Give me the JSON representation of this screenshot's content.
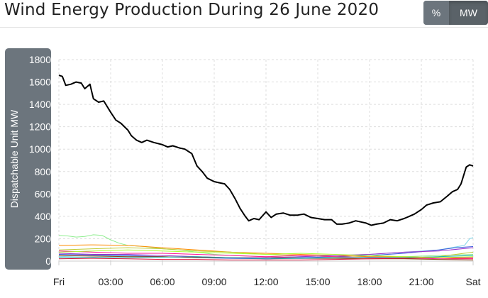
{
  "title": "Wind Energy Production During 26 June 2020",
  "unit_toggle": {
    "options": [
      "%",
      "MW"
    ],
    "selected": "MW"
  },
  "colors": {
    "main_series": "#000000",
    "axis_band": "#6c757d",
    "grid": "#dddddd"
  },
  "chart_data": {
    "type": "line",
    "title": "Wind Energy Production During 26 June 2020",
    "xlabel": "",
    "ylabel": "Dispatchable Unit MW",
    "ylim": [
      0,
      1800
    ],
    "xlim": [
      0,
      24
    ],
    "yticks": [
      0,
      200,
      400,
      600,
      800,
      1000,
      1200,
      1400,
      1600,
      1800
    ],
    "xticks": [
      {
        "x": 0,
        "label": "Fri"
      },
      {
        "x": 3,
        "label": "03:00"
      },
      {
        "x": 6,
        "label": "06:00"
      },
      {
        "x": 9,
        "label": "09:00"
      },
      {
        "x": 12,
        "label": "12:00"
      },
      {
        "x": 15,
        "label": "15:00"
      },
      {
        "x": 18,
        "label": "18:00"
      },
      {
        "x": 21,
        "label": "21:00"
      },
      {
        "x": 24,
        "label": "Sat"
      }
    ],
    "grid": true,
    "legend": "none",
    "series": [
      {
        "color": "#000000",
        "width": 2,
        "points": [
          [
            0,
            1660
          ],
          [
            0.2,
            1650
          ],
          [
            0.4,
            1570
          ],
          [
            0.7,
            1580
          ],
          [
            1.0,
            1600
          ],
          [
            1.3,
            1590
          ],
          [
            1.5,
            1540
          ],
          [
            1.8,
            1580
          ],
          [
            2.0,
            1450
          ],
          [
            2.3,
            1420
          ],
          [
            2.6,
            1430
          ],
          [
            3.0,
            1330
          ],
          [
            3.3,
            1260
          ],
          [
            3.6,
            1230
          ],
          [
            4.0,
            1170
          ],
          [
            4.2,
            1120
          ],
          [
            4.5,
            1080
          ],
          [
            4.8,
            1060
          ],
          [
            5.1,
            1080
          ],
          [
            5.5,
            1060
          ],
          [
            6.0,
            1040
          ],
          [
            6.3,
            1020
          ],
          [
            6.6,
            1030
          ],
          [
            7.0,
            1010
          ],
          [
            7.3,
            1000
          ],
          [
            7.7,
            960
          ],
          [
            8.0,
            850
          ],
          [
            8.3,
            800
          ],
          [
            8.6,
            740
          ],
          [
            9.0,
            710
          ],
          [
            9.3,
            700
          ],
          [
            9.6,
            690
          ],
          [
            9.9,
            640
          ],
          [
            10.2,
            560
          ],
          [
            10.5,
            470
          ],
          [
            10.8,
            400
          ],
          [
            11.0,
            360
          ],
          [
            11.3,
            380
          ],
          [
            11.6,
            370
          ],
          [
            12.0,
            440
          ],
          [
            12.3,
            390
          ],
          [
            12.6,
            420
          ],
          [
            13.0,
            430
          ],
          [
            13.4,
            410
          ],
          [
            13.8,
            410
          ],
          [
            14.2,
            420
          ],
          [
            14.6,
            390
          ],
          [
            15.0,
            380
          ],
          [
            15.4,
            370
          ],
          [
            15.8,
            370
          ],
          [
            16.1,
            330
          ],
          [
            16.4,
            330
          ],
          [
            16.8,
            340
          ],
          [
            17.2,
            360
          ],
          [
            17.5,
            350
          ],
          [
            17.8,
            340
          ],
          [
            18.1,
            320
          ],
          [
            18.4,
            330
          ],
          [
            18.8,
            340
          ],
          [
            19.2,
            370
          ],
          [
            19.6,
            360
          ],
          [
            20.0,
            380
          ],
          [
            20.3,
            400
          ],
          [
            20.6,
            420
          ],
          [
            21.0,
            460
          ],
          [
            21.3,
            500
          ],
          [
            21.7,
            520
          ],
          [
            22.1,
            530
          ],
          [
            22.5,
            580
          ],
          [
            22.8,
            620
          ],
          [
            23.1,
            640
          ],
          [
            23.3,
            690
          ],
          [
            23.6,
            840
          ],
          [
            23.8,
            860
          ],
          [
            24.0,
            850
          ]
        ]
      },
      {
        "color": "#90ee90",
        "width": 1,
        "points": [
          [
            0,
            230
          ],
          [
            0.5,
            225
          ],
          [
            1,
            215
          ],
          [
            1.5,
            220
          ],
          [
            2,
            235
          ],
          [
            2.5,
            230
          ],
          [
            3,
            190
          ],
          [
            3.5,
            160
          ],
          [
            4,
            140
          ],
          [
            5,
            130
          ],
          [
            6,
            110
          ],
          [
            7,
            100
          ],
          [
            8,
            80
          ],
          [
            9,
            60
          ],
          [
            10,
            50
          ],
          [
            12,
            40
          ],
          [
            14,
            30
          ],
          [
            16,
            30
          ],
          [
            18,
            40
          ],
          [
            20,
            40
          ],
          [
            22,
            50
          ],
          [
            24,
            60
          ]
        ]
      },
      {
        "color": "#7dd3e8",
        "width": 1,
        "points": [
          [
            0,
            40
          ],
          [
            2,
            50
          ],
          [
            4,
            45
          ],
          [
            6,
            40
          ],
          [
            8,
            35
          ],
          [
            10,
            30
          ],
          [
            12,
            30
          ],
          [
            14,
            40
          ],
          [
            16,
            50
          ],
          [
            18,
            60
          ],
          [
            20,
            80
          ],
          [
            22,
            100
          ],
          [
            23.5,
            140
          ],
          [
            23.8,
            200
          ],
          [
            24,
            210
          ]
        ]
      },
      {
        "color": "#3b5bdb",
        "width": 1,
        "points": [
          [
            0,
            60
          ],
          [
            2,
            55
          ],
          [
            4,
            50
          ],
          [
            6,
            40
          ],
          [
            8,
            30
          ],
          [
            10,
            25
          ],
          [
            12,
            20
          ],
          [
            14,
            30
          ],
          [
            16,
            40
          ],
          [
            18,
            50
          ],
          [
            20,
            70
          ],
          [
            22,
            100
          ],
          [
            23,
            120
          ],
          [
            24,
            130
          ]
        ]
      },
      {
        "color": "#ff8c00",
        "width": 1,
        "points": [
          [
            0,
            140
          ],
          [
            2,
            145
          ],
          [
            4,
            140
          ],
          [
            6,
            120
          ],
          [
            8,
            100
          ],
          [
            10,
            80
          ],
          [
            12,
            70
          ],
          [
            14,
            60
          ],
          [
            16,
            50
          ],
          [
            18,
            40
          ],
          [
            20,
            40
          ],
          [
            22,
            30
          ],
          [
            24,
            20
          ]
        ]
      },
      {
        "color": "#c0ca33",
        "width": 1,
        "points": [
          [
            0,
            100
          ],
          [
            2,
            110
          ],
          [
            4,
            120
          ],
          [
            6,
            110
          ],
          [
            8,
            90
          ],
          [
            10,
            80
          ],
          [
            12,
            60
          ],
          [
            14,
            50
          ],
          [
            16,
            40
          ],
          [
            18,
            30
          ],
          [
            20,
            30
          ],
          [
            22,
            40
          ],
          [
            24,
            80
          ]
        ]
      },
      {
        "color": "#ff1493",
        "width": 1,
        "points": [
          [
            0,
            90
          ],
          [
            2,
            80
          ],
          [
            4,
            70
          ],
          [
            6,
            70
          ],
          [
            8,
            60
          ],
          [
            10,
            50
          ],
          [
            12,
            40
          ],
          [
            14,
            50
          ],
          [
            16,
            40
          ],
          [
            18,
            30
          ],
          [
            20,
            30
          ],
          [
            22,
            20
          ],
          [
            24,
            20
          ]
        ]
      },
      {
        "color": "#8b4513",
        "width": 1,
        "points": [
          [
            0,
            50
          ],
          [
            2,
            45
          ],
          [
            4,
            40
          ],
          [
            6,
            40
          ],
          [
            8,
            30
          ],
          [
            10,
            30
          ],
          [
            12,
            30
          ],
          [
            14,
            25
          ],
          [
            16,
            25
          ],
          [
            18,
            20
          ],
          [
            20,
            20
          ],
          [
            22,
            15
          ],
          [
            24,
            10
          ]
        ]
      },
      {
        "color": "#9932cc",
        "width": 1,
        "points": [
          [
            0,
            70
          ],
          [
            2,
            60
          ],
          [
            4,
            60
          ],
          [
            6,
            50
          ],
          [
            8,
            40
          ],
          [
            10,
            30
          ],
          [
            12,
            30
          ],
          [
            14,
            40
          ],
          [
            16,
            50
          ],
          [
            18,
            60
          ],
          [
            20,
            80
          ],
          [
            22,
            90
          ],
          [
            24,
            120
          ]
        ]
      },
      {
        "color": "#20b2aa",
        "width": 1,
        "points": [
          [
            0,
            30
          ],
          [
            2,
            35
          ],
          [
            4,
            30
          ],
          [
            6,
            35
          ],
          [
            8,
            40
          ],
          [
            10,
            30
          ],
          [
            12,
            20
          ],
          [
            14,
            25
          ],
          [
            16,
            30
          ],
          [
            18,
            35
          ],
          [
            20,
            30
          ],
          [
            22,
            40
          ],
          [
            24,
            50
          ]
        ]
      },
      {
        "color": "#dc143c",
        "width": 1,
        "points": [
          [
            0,
            20
          ],
          [
            2,
            25
          ],
          [
            4,
            20
          ],
          [
            6,
            15
          ],
          [
            8,
            15
          ],
          [
            10,
            10
          ],
          [
            12,
            10
          ],
          [
            14,
            10
          ],
          [
            16,
            15
          ],
          [
            18,
            20
          ],
          [
            20,
            25
          ],
          [
            22,
            30
          ],
          [
            24,
            30
          ]
        ]
      },
      {
        "color": "#adff2f",
        "width": 1,
        "points": [
          [
            0,
            80
          ],
          [
            2,
            90
          ],
          [
            4,
            100
          ],
          [
            6,
            90
          ],
          [
            8,
            80
          ],
          [
            10,
            70
          ],
          [
            12,
            60
          ],
          [
            14,
            70
          ],
          [
            16,
            60
          ],
          [
            18,
            50
          ],
          [
            20,
            40
          ],
          [
            22,
            30
          ],
          [
            24,
            40
          ]
        ]
      }
    ]
  }
}
